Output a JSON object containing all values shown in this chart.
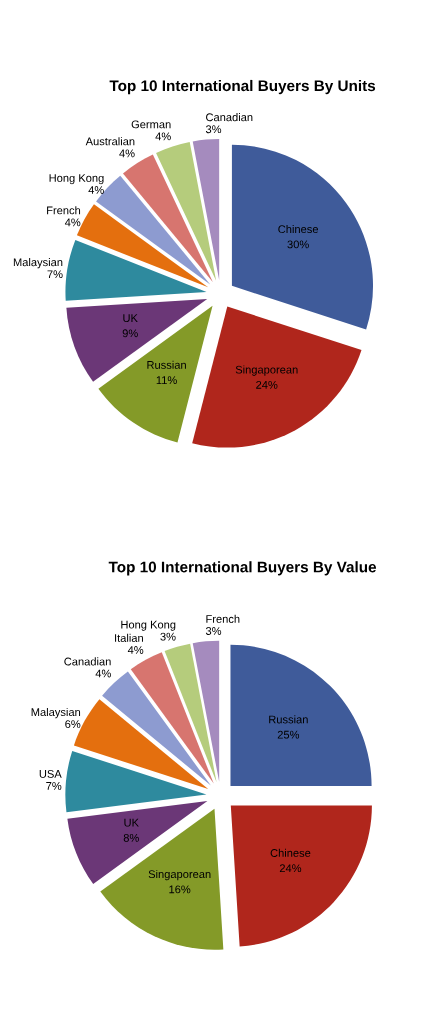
{
  "chart_data": [
    {
      "type": "pie",
      "title": "Top 10 International Buyers By Units",
      "categories": [
        "Chinese",
        "Singaporean",
        "Russian",
        "UK",
        "Malaysian",
        "French",
        "Hong Kong",
        "Australian",
        "German",
        "Canadian"
      ],
      "values": [
        30,
        24,
        11,
        9,
        7,
        4,
        4,
        4,
        4,
        3
      ],
      "value_labels": [
        "30%",
        "24%",
        "11%",
        "9%",
        "7%",
        "4%",
        "4%",
        "4%",
        "4%",
        "3%"
      ],
      "colors": [
        "#3f5b9a",
        "#b0261c",
        "#849a28",
        "#6b3777",
        "#2e8a9e",
        "#e46f0e",
        "#8d9bd0",
        "#d7756f",
        "#b5cc7c",
        "#a58bbe"
      ],
      "legend": false
    },
    {
      "type": "pie",
      "title": "Top 10 International Buyers By Value",
      "categories": [
        "Russian",
        "Chinese",
        "Singaporean",
        "UK",
        "USA",
        "Malaysian",
        "Canadian",
        "Italian",
        "Hong Kong",
        "French"
      ],
      "values": [
        25,
        24,
        16,
        8,
        7,
        6,
        4,
        4,
        3,
        3
      ],
      "value_labels": [
        "25%",
        "24%",
        "16%",
        "8%",
        "7%",
        "6%",
        "4%",
        "4%",
        "3%",
        "3%"
      ],
      "colors": [
        "#3f5b9a",
        "#b0261c",
        "#849a28",
        "#6b3777",
        "#2e8a9e",
        "#e46f0e",
        "#8d9bd0",
        "#d7756f",
        "#b5cc7c",
        "#a58bbe"
      ],
      "legend": false
    }
  ]
}
